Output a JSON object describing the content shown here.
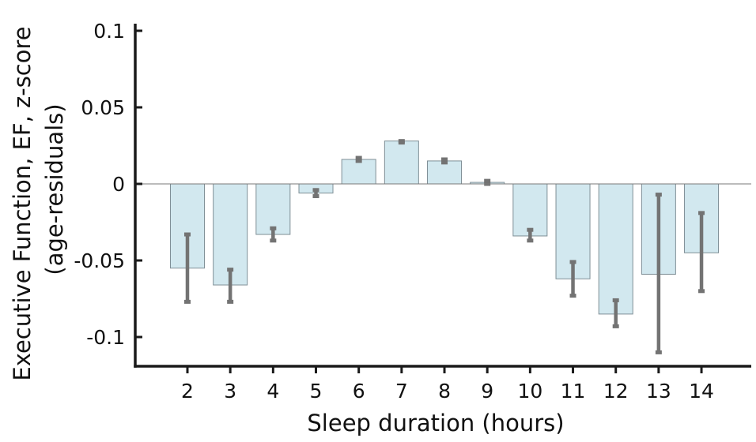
{
  "chart_data": {
    "type": "bar",
    "title": "",
    "xlabel": "Sleep duration (hours)",
    "ylabel_line1": "Executive Function, EF, z-score",
    "ylabel_line2": "(age-residuals)",
    "categories": [
      "2",
      "3",
      "4",
      "5",
      "6",
      "7",
      "8",
      "9",
      "10",
      "11",
      "12",
      "13",
      "14"
    ],
    "values": [
      -0.055,
      -0.066,
      -0.033,
      -0.006,
      0.016,
      0.028,
      0.015,
      0.001,
      -0.034,
      -0.062,
      -0.085,
      -0.059,
      -0.045
    ],
    "error_low": [
      -0.077,
      -0.077,
      -0.037,
      -0.008,
      0.015,
      0.027,
      0.014,
      0.0,
      -0.037,
      -0.073,
      -0.093,
      -0.11,
      -0.07
    ],
    "error_high": [
      -0.033,
      -0.056,
      -0.029,
      -0.004,
      0.017,
      0.028,
      0.016,
      0.002,
      -0.03,
      -0.051,
      -0.076,
      -0.007,
      -0.019
    ],
    "ylim": [
      -0.12,
      0.105
    ],
    "yticks": [
      0.1,
      0.05,
      0,
      -0.05,
      -0.1
    ],
    "ytick_labels": [
      "0.1",
      "0.05",
      "0",
      "-0.05",
      "-0.1"
    ],
    "grid": false,
    "legend": "none",
    "colors": {
      "bar_fill": "#d2e8ef",
      "bar_edge": "#7f8f96",
      "error_bar": "#737373",
      "axis": "#1a1a1a"
    }
  }
}
